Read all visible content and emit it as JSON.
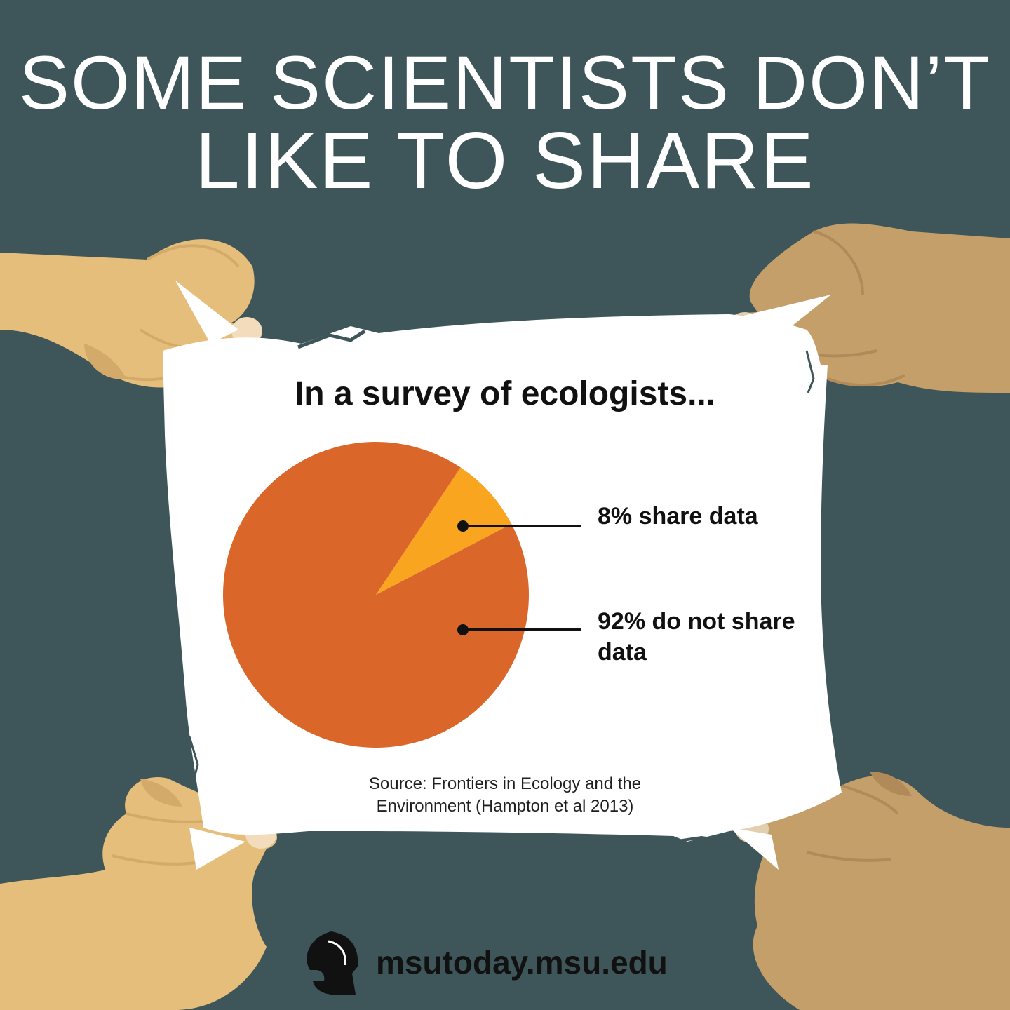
{
  "headline": {
    "line1": "SOME SCIENTISTS DON’T",
    "line2": "LIKE TO SHARE"
  },
  "chart_data": {
    "type": "pie",
    "title": "In a survey of ecologists...",
    "slices": [
      {
        "label": "8% share data",
        "value": 8,
        "color": "#f9a51f"
      },
      {
        "label": "92% do not share data",
        "value": 92,
        "color": "#db662a"
      }
    ]
  },
  "legend": {
    "share": "8% share data",
    "noshare": "92% do not share data"
  },
  "source": {
    "line1": "Source: Frontiers in Ecology and the",
    "line2": "Environment (Hampton et al 2013)"
  },
  "footer": {
    "url": "msutoday.msu.edu"
  },
  "colors": {
    "background": "#3e5659",
    "paper": "#ffffff",
    "pie_main": "#db662a",
    "pie_slice": "#f9a51f",
    "skin_light": "#e6be7c",
    "skin_dark": "#c49f6a"
  },
  "icons": [
    "spartan-helmet-logo"
  ]
}
